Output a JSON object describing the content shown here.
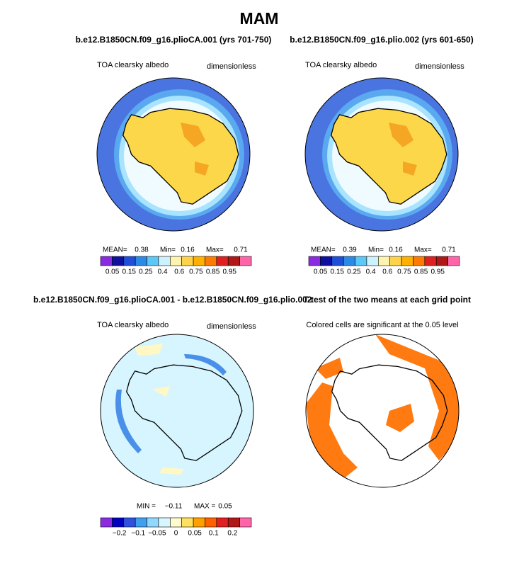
{
  "title": "MAM",
  "panels": [
    {
      "title": "b.e12.B1850CN.f09_g16.plioCA.001 (yrs 701-750)",
      "left_label": "TOA clearsky albedo",
      "right_label": "dimensionless",
      "stats": [
        "MEAN=",
        "0.38",
        "Min=",
        "0.16",
        "Max=",
        "0.71"
      ],
      "colorbar_labels": [
        "0.05",
        "0.15",
        "0.25",
        "0.4",
        "0.6",
        "0.75",
        "0.85",
        "0.95"
      ]
    },
    {
      "title": "b.e12.B1850CN.f09_g16.plio.002 (yrs 601-650)",
      "left_label": "TOA clearsky albedo",
      "right_label": "dimensionless",
      "stats": [
        "MEAN=",
        "0.39",
        "Min=",
        "0.16",
        "Max=",
        "0.71"
      ],
      "colorbar_labels": [
        "0.05",
        "0.15",
        "0.25",
        "0.4",
        "0.6",
        "0.75",
        "0.85",
        "0.95"
      ]
    },
    {
      "title": "b.e12.B1850CN.f09_g16.plioCA.001 - b.e12.B1850CN.f09_g16.plio.002",
      "left_label": "TOA clearsky albedo",
      "right_label": "dimensionless",
      "stats": [
        "MIN =",
        "−0.11",
        "MAX =",
        "0.05"
      ],
      "colorbar_labels": [
        "−0.2",
        "−0.1",
        "−0.05",
        "0",
        "0.05",
        "0.1",
        "0.2"
      ]
    },
    {
      "title": "T-test of the two means at each grid point",
      "note": "Colored cells are significant at the 0.05 level"
    }
  ]
}
